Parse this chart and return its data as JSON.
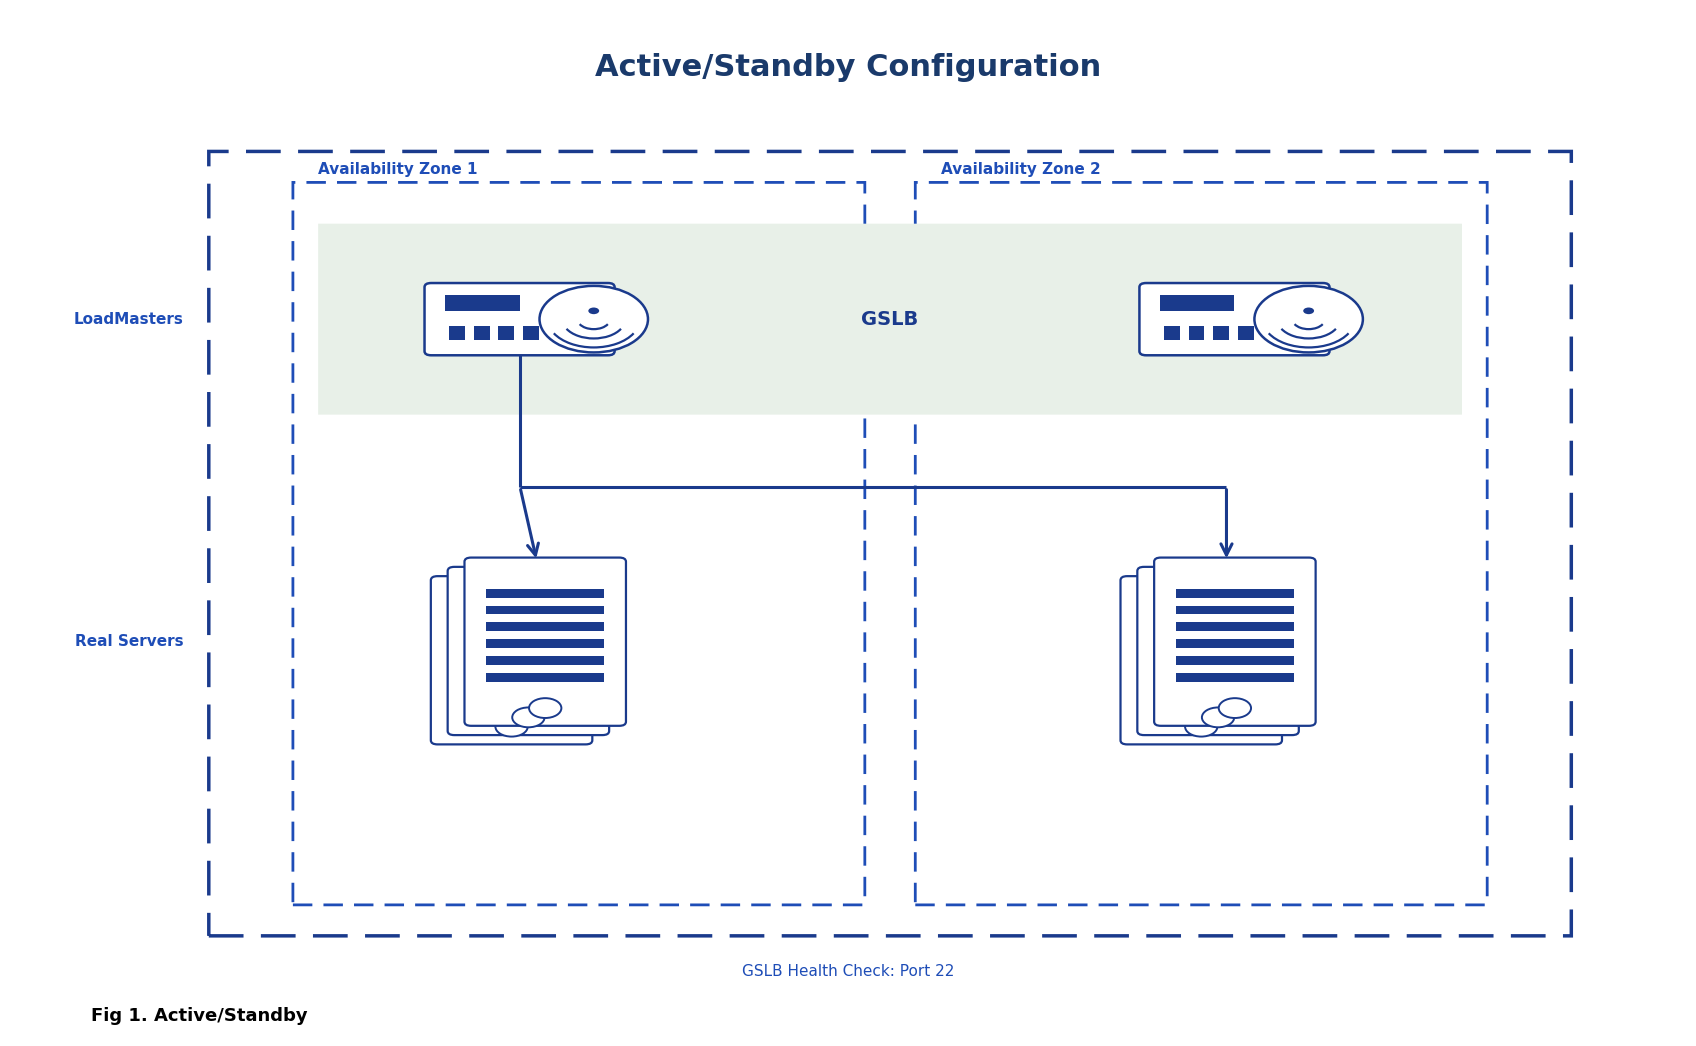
{
  "title": "Active/Standby Configuration",
  "title_color": "#1a3a6b",
  "title_fontsize": 22,
  "title_fontweight": "bold",
  "bg_color": "#ffffff",
  "blue_dark": "#1a3a8c",
  "blue_mid": "#1e4db7",
  "green_bg": "#e8f0e8",
  "label_loadmasters": "LoadMasters",
  "label_real_servers": "Real Servers",
  "label_az1": "Availability Zone 1",
  "label_az2": "Availability Zone 2",
  "label_gslb": "GSLB",
  "label_health": "GSLB Health Check: Port 22",
  "label_fig": "Fig 1. Active/Standby"
}
